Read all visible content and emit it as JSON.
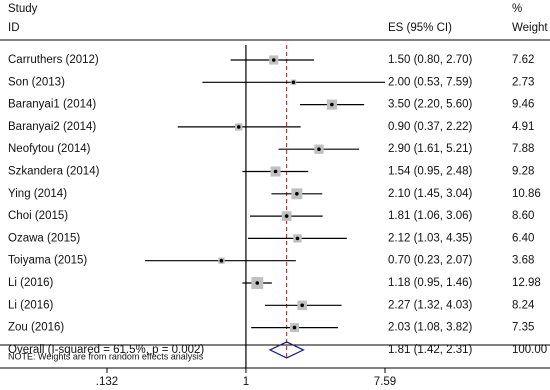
{
  "chart_data": {
    "type": "forest",
    "study_header": "Study",
    "id_header": "ID",
    "es_header": "ES (95% CI)",
    "pct_header": "%",
    "weight_header": "Weight",
    "studies": [
      "Carruthers (2012)",
      "Son (2013)",
      "Baranyai1 (2014)",
      "Baranyai2 (2014)",
      "Neofytou (2014)",
      "Szkandera (2014)",
      "Ying (2014)",
      "Choi (2015)",
      "Ozawa (2015)",
      "Toiyama (2015)",
      "Li (2016)",
      "Li (2016)",
      "Zou (2016)"
    ],
    "values": [
      1.5,
      2.0,
      3.5,
      0.9,
      2.9,
      1.54,
      2.1,
      1.81,
      2.12,
      0.7,
      1.18,
      2.27,
      2.03
    ],
    "lower": [
      0.8,
      0.53,
      2.2,
      0.37,
      1.61,
      0.95,
      1.45,
      1.06,
      1.03,
      0.23,
      0.95,
      1.32,
      1.08
    ],
    "upper": [
      2.7,
      7.59,
      5.6,
      2.22,
      5.21,
      2.48,
      3.04,
      3.06,
      4.35,
      2.07,
      1.46,
      4.03,
      3.82
    ],
    "value_labels": [
      "1.50 (0.80, 2.70)",
      "2.00 (0.53, 7.59)",
      "3.50 (2.20, 5.60)",
      "0.90 (0.37, 2.22)",
      "2.90 (1.61, 5.21)",
      "1.54 (0.95, 2.48)",
      "2.10 (1.45, 3.04)",
      "1.81 (1.06, 3.06)",
      "2.12 (1.03, 4.35)",
      "0.70 (0.23, 2.07)",
      "1.18 (0.95, 1.46)",
      "2.27 (1.32, 4.03)",
      "2.03 (1.08, 3.82)"
    ],
    "weights": [
      7.62,
      2.73,
      9.46,
      4.91,
      7.88,
      9.28,
      10.86,
      8.6,
      6.4,
      3.68,
      12.98,
      8.24,
      7.35
    ],
    "weight_labels": [
      "7.62",
      "2.73",
      "9.46",
      "4.91",
      "7.88",
      "9.28",
      "10.86",
      "8.60",
      "6.40",
      "3.68",
      "12.98",
      "8.24",
      "7.35"
    ],
    "overall_label": "Overall  (I-squared = 61.5%, p = 0.002)",
    "overall_value": 1.81,
    "overall_lower": 1.42,
    "overall_upper": 2.31,
    "overall_value_label": "1.81 (1.42, 2.31)",
    "overall_weight": 100,
    "overall_weight_label": "100.00",
    "note": "NOTE: Weights are from random effects analysis",
    "log_x": true,
    "xlim": [
      0.132,
      7.59
    ],
    "xticks": [
      {
        "value": 0.132,
        "label": ".132"
      },
      1,
      7.59
    ],
    "box_color": "#c0c0c0",
    "diamond_color": "#1a1a8c",
    "overall_line_color": "#8b2a2a"
  }
}
